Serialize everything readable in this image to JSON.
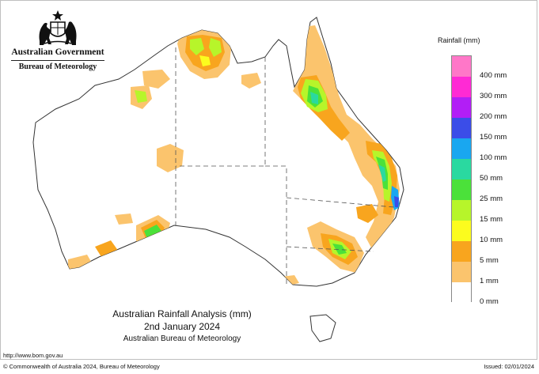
{
  "branding": {
    "government": "Australian Government",
    "bureau": "Bureau of Meteorology",
    "crest_icon": "commonwealth-coat-of-arms"
  },
  "legend": {
    "title": "Rainfall (mm)",
    "classes": [
      {
        "label": "400 mm",
        "color": "#ff77c8"
      },
      {
        "label": "300 mm",
        "color": "#ff2ad4"
      },
      {
        "label": "200 mm",
        "color": "#b21ef6"
      },
      {
        "label": "150 mm",
        "color": "#3b4de8"
      },
      {
        "label": "100 mm",
        "color": "#19a7f0"
      },
      {
        "label": "50 mm",
        "color": "#2ad9a0"
      },
      {
        "label": "25 mm",
        "color": "#4be13a"
      },
      {
        "label": "15 mm",
        "color": "#b7f52a"
      },
      {
        "label": "10 mm",
        "color": "#fcfc1e"
      },
      {
        "label": "5 mm",
        "color": "#f8a51e"
      },
      {
        "label": "1 mm",
        "color": "#fbc46d"
      },
      {
        "label": "0 mm",
        "color": "#ffffff"
      }
    ]
  },
  "caption": {
    "title": "Australian Rainfall Analysis (mm)",
    "date": "2nd January 2024",
    "agency": "Australian Bureau of Meteorology"
  },
  "footer": {
    "url": "http://www.bom.gov.au",
    "copyright": "© Commonwealth of Australia 2024, Bureau of Meteorology",
    "issued": "Issued: 02/01/2024"
  }
}
